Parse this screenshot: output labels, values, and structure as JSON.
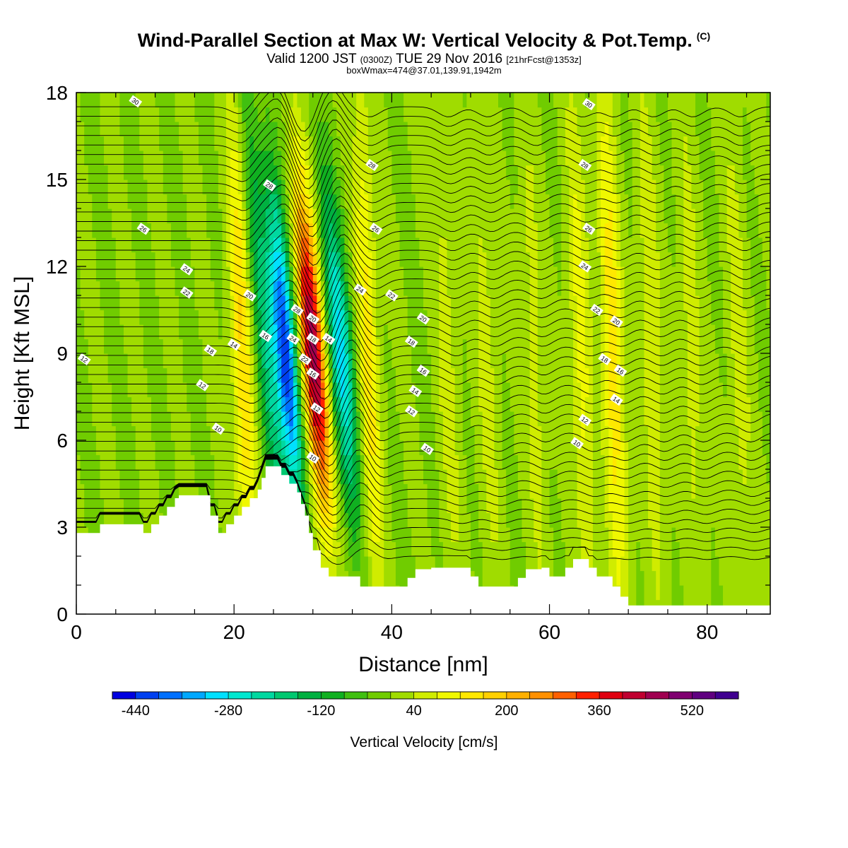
{
  "header": {
    "title": "Wind-Parallel Section at Max W: Vertical Velocity & Pot.Temp.",
    "copyright": "(C)",
    "valid_prefix": "Valid 1200 JST",
    "valid_utc": "(0300Z)",
    "valid_date": "TUE 29 Nov 2016",
    "fcst": "[21hrFcst@1353z]",
    "boxinfo": "boxWmax=474@37.01,139.91,1942m"
  },
  "chart_data": {
    "type": "heatmap",
    "xlabel": "Distance [nm]",
    "ylabel": "Height [Kft MSL]",
    "xlim": [
      0,
      88
    ],
    "ylim": [
      0,
      18
    ],
    "xticks": [
      "0",
      "20",
      "40",
      "60",
      "80"
    ],
    "yticks": [
      "0",
      "3",
      "6",
      "9",
      "12",
      "15",
      "18"
    ],
    "colorbar": {
      "label": "Vertical Velocity [cm/s]",
      "tick_labels": [
        "-440",
        "-280",
        "-120",
        "40",
        "200",
        "360",
        "520"
      ],
      "tick_values": [
        -440,
        -280,
        -120,
        40,
        200,
        360,
        520
      ],
      "bounds": [
        -480,
        600
      ],
      "colors": [
        "#0000e0",
        "#0040f0",
        "#0070ff",
        "#00a8ff",
        "#00e0ff",
        "#00e8d0",
        "#00d8a0",
        "#00c870",
        "#00b040",
        "#10b020",
        "#40c010",
        "#70cc00",
        "#a0dc00",
        "#d0ec00",
        "#f0f800",
        "#ffe800",
        "#ffd000",
        "#ffb000",
        "#ff9000",
        "#ff6000",
        "#ff2000",
        "#e00010",
        "#c00030",
        "#a00050",
        "#800070",
        "#600080",
        "#400090"
      ]
    },
    "w_features": [
      {
        "x": 21,
        "w": 160
      },
      {
        "x": 24,
        "w": -160
      },
      {
        "x": 26.5,
        "w": -440
      },
      {
        "x": 30,
        "w": 474
      },
      {
        "x": 33.5,
        "w": -300
      },
      {
        "x": 37,
        "w": 140
      },
      {
        "x": 47,
        "w": 60
      },
      {
        "x": 52,
        "w": 60
      },
      {
        "x": 58,
        "w": 60
      },
      {
        "x": 64,
        "w": 100
      },
      {
        "x": 68,
        "w": 160
      },
      {
        "x": 73,
        "w": 80
      },
      {
        "x": 78,
        "w": 60
      },
      {
        "x": 84,
        "w": 60
      }
    ],
    "terrain": [
      [
        0,
        2.8
      ],
      [
        3,
        2.8
      ],
      [
        3,
        3.1
      ],
      [
        8.5,
        3.1
      ],
      [
        8.5,
        2.8
      ],
      [
        9.5,
        2.8
      ],
      [
        9.5,
        3.1
      ],
      [
        10.5,
        3.1
      ],
      [
        10.5,
        3.4
      ],
      [
        11.5,
        3.4
      ],
      [
        11.5,
        3.7
      ],
      [
        12.5,
        3.7
      ],
      [
        12.5,
        4.0
      ],
      [
        13,
        4.0
      ],
      [
        13,
        4.1
      ],
      [
        17,
        4.1
      ],
      [
        17,
        3.4
      ],
      [
        18,
        3.4
      ],
      [
        18,
        2.8
      ],
      [
        19,
        2.8
      ],
      [
        19,
        3.1
      ],
      [
        20,
        3.1
      ],
      [
        20,
        3.4
      ],
      [
        21,
        3.4
      ],
      [
        21,
        3.7
      ],
      [
        22,
        3.7
      ],
      [
        22,
        4.0
      ],
      [
        23,
        4.0
      ],
      [
        23,
        4.3
      ],
      [
        23.5,
        4.3
      ],
      [
        23.5,
        4.7
      ],
      [
        24,
        4.7
      ],
      [
        24,
        5.1
      ],
      [
        26,
        5.1
      ],
      [
        26,
        4.8
      ],
      [
        27,
        4.8
      ],
      [
        27,
        4.5
      ],
      [
        28,
        4.5
      ],
      [
        28,
        4.2
      ],
      [
        28.5,
        4.2
      ],
      [
        28.5,
        3.8
      ],
      [
        29,
        3.8
      ],
      [
        29,
        3.4
      ],
      [
        29.5,
        3.4
      ],
      [
        29.5,
        2.8
      ],
      [
        30,
        2.8
      ],
      [
        30,
        2.2
      ],
      [
        31,
        2.2
      ],
      [
        31,
        1.6
      ],
      [
        32,
        1.6
      ],
      [
        32,
        1.3
      ],
      [
        36,
        1.3
      ],
      [
        36,
        0.95
      ],
      [
        42,
        0.95
      ],
      [
        42,
        1.25
      ],
      [
        43,
        1.25
      ],
      [
        43,
        1.55
      ],
      [
        45,
        1.55
      ],
      [
        45,
        1.6
      ],
      [
        50,
        1.6
      ],
      [
        50,
        1.3
      ],
      [
        51,
        1.3
      ],
      [
        51,
        0.95
      ],
      [
        56,
        0.95
      ],
      [
        56,
        1.25
      ],
      [
        57,
        1.25
      ],
      [
        57,
        1.55
      ],
      [
        59,
        1.55
      ],
      [
        59,
        1.6
      ],
      [
        60,
        1.6
      ],
      [
        60,
        1.3
      ],
      [
        62,
        1.3
      ],
      [
        62,
        1.6
      ],
      [
        63,
        1.6
      ],
      [
        63,
        1.9
      ],
      [
        65,
        1.9
      ],
      [
        65,
        1.6
      ],
      [
        66,
        1.6
      ],
      [
        66,
        1.3
      ],
      [
        68,
        1.3
      ],
      [
        68,
        0.95
      ],
      [
        69,
        0.95
      ],
      [
        69,
        0.6
      ],
      [
        70,
        0.6
      ],
      [
        70,
        0.3
      ],
      [
        88,
        0.3
      ]
    ],
    "isentropes": {
      "base_height": 2.0,
      "spacing": 0.33,
      "count": 48,
      "labels": [
        {
          "x": 7.5,
          "y": 17.7,
          "text": "30"
        },
        {
          "x": 65,
          "y": 17.6,
          "text": "30"
        },
        {
          "x": 37.5,
          "y": 15.5,
          "text": "28"
        },
        {
          "x": 64.5,
          "y": 15.5,
          "text": "28"
        },
        {
          "x": 24.5,
          "y": 14.8,
          "text": "28"
        },
        {
          "x": 8.5,
          "y": 13.3,
          "text": "26"
        },
        {
          "x": 38,
          "y": 13.3,
          "text": "26"
        },
        {
          "x": 65,
          "y": 13.3,
          "text": "26"
        },
        {
          "x": 14,
          "y": 11.9,
          "text": "24"
        },
        {
          "x": 36,
          "y": 11.2,
          "text": "24"
        },
        {
          "x": 64.5,
          "y": 12.0,
          "text": "24"
        },
        {
          "x": 14,
          "y": 11.1,
          "text": "22"
        },
        {
          "x": 40,
          "y": 11.0,
          "text": "22"
        },
        {
          "x": 66,
          "y": 10.5,
          "text": "22"
        },
        {
          "x": 22,
          "y": 11.0,
          "text": "20"
        },
        {
          "x": 30,
          "y": 10.2,
          "text": "20"
        },
        {
          "x": 44,
          "y": 10.2,
          "text": "20"
        },
        {
          "x": 68.5,
          "y": 10.1,
          "text": "20"
        },
        {
          "x": 28,
          "y": 10.5,
          "text": "28"
        },
        {
          "x": 27.5,
          "y": 9.5,
          "text": "24"
        },
        {
          "x": 29,
          "y": 8.8,
          "text": "22"
        },
        {
          "x": 17,
          "y": 9.1,
          "text": "18"
        },
        {
          "x": 30,
          "y": 9.5,
          "text": "18"
        },
        {
          "x": 42.5,
          "y": 9.4,
          "text": "18"
        },
        {
          "x": 67,
          "y": 8.8,
          "text": "18"
        },
        {
          "x": 24,
          "y": 9.6,
          "text": "16"
        },
        {
          "x": 30,
          "y": 8.3,
          "text": "16"
        },
        {
          "x": 44,
          "y": 8.4,
          "text": "16"
        },
        {
          "x": 69,
          "y": 8.4,
          "text": "16"
        },
        {
          "x": 20,
          "y": 9.3,
          "text": "14"
        },
        {
          "x": 32,
          "y": 9.5,
          "text": "14"
        },
        {
          "x": 43,
          "y": 7.7,
          "text": "14"
        },
        {
          "x": 68.5,
          "y": 7.4,
          "text": "14"
        },
        {
          "x": 16,
          "y": 7.9,
          "text": "12"
        },
        {
          "x": 30.5,
          "y": 7.1,
          "text": "12"
        },
        {
          "x": 42.5,
          "y": 7.0,
          "text": "12"
        },
        {
          "x": 64.5,
          "y": 6.7,
          "text": "12"
        },
        {
          "x": 1,
          "y": 8.8,
          "text": "12"
        },
        {
          "x": 18,
          "y": 6.4,
          "text": "10"
        },
        {
          "x": 30,
          "y": 5.4,
          "text": "10"
        },
        {
          "x": 44.5,
          "y": 5.7,
          "text": "10"
        },
        {
          "x": 63.5,
          "y": 5.9,
          "text": "10"
        }
      ]
    }
  }
}
